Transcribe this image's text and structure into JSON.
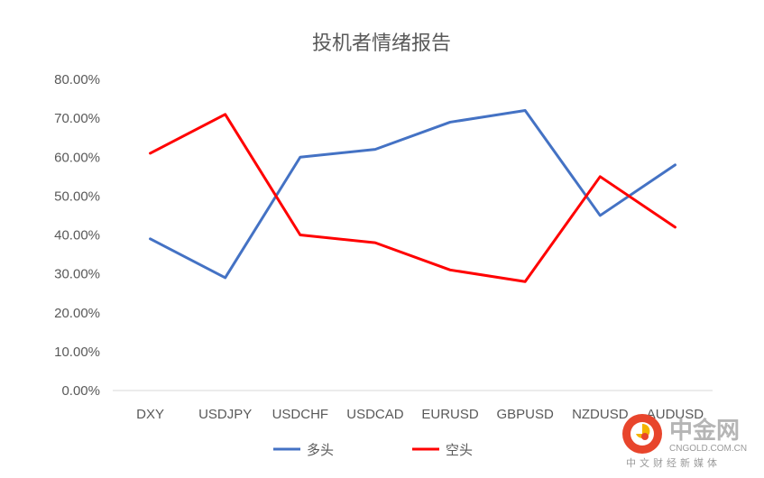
{
  "chart_data": {
    "type": "line",
    "title": "投机者情绪报告",
    "categories": [
      "DXY",
      "USDJPY",
      "USDCHF",
      "USDCAD",
      "EURUSD",
      "GBPUSD",
      "NZDUSD",
      "AUDUSD"
    ],
    "series": [
      {
        "name": "多头",
        "color": "#4472C4",
        "values": [
          39,
          29,
          60,
          62,
          69,
          72,
          45,
          58
        ]
      },
      {
        "name": "空头",
        "color": "#FF0000",
        "values": [
          61,
          71,
          40,
          38,
          31,
          28,
          55,
          42
        ]
      }
    ],
    "yticks": [
      "0.00%",
      "10.00%",
      "20.00%",
      "30.00%",
      "40.00%",
      "50.00%",
      "60.00%",
      "70.00%",
      "80.00%"
    ],
    "ylim": [
      0,
      80
    ],
    "ylabel": "",
    "xlabel": "",
    "grid": false,
    "legend_position": "bottom"
  },
  "watermark": {
    "name": "中金网",
    "domain": "CNGOLD.COM.CN",
    "tagline": "中文财经新媒体",
    "logo_color": "#E8452C"
  }
}
